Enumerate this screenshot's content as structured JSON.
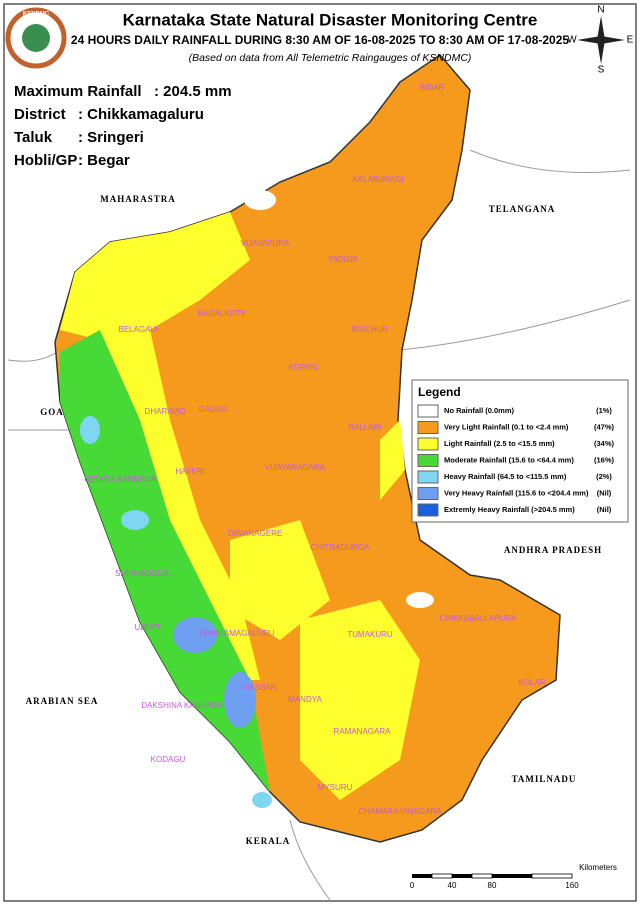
{
  "header": {
    "title": "Karnataka State Natural Disaster Monitoring Centre",
    "subtitle": "24 HOURS DAILY RAINFALL DURING 8:30 AM OF 16-08-2025 TO 8:30 AM OF 17-08-2025",
    "note": "(Based on data from All Telemetric Raingauges of KSNDMC)"
  },
  "logo": {
    "text": "KSNDMC"
  },
  "summary": [
    {
      "label": "Maximum Rainfall",
      "value": ": 204.5 mm"
    },
    {
      "label": "District",
      "value": ": Chikkamagaluru"
    },
    {
      "label": "Taluk",
      "value": ": Sringeri"
    },
    {
      "label": "Hobli/GP",
      "value": ": Begar"
    }
  ],
  "compass": [
    "N",
    "E",
    "S",
    "W"
  ],
  "map": {
    "neighbors": [
      "MAHARASTRA",
      "TELANGANA",
      "GOA",
      "ANDHRA PRADESH",
      "ARABIAN SEA",
      "TAMILNADU",
      "KERALA"
    ],
    "districts": [
      "BIDAR",
      "KALABURAGI",
      "VIJAYAPURA",
      "YADGIR",
      "BELAGAVI",
      "BAGALKOTE",
      "RAICHUR",
      "KOPPAL",
      "GADAG",
      "DHARWAD",
      "BALLARI",
      "HAVERI",
      "UTTARA KANNADA",
      "DAVANAGERE",
      "VIJAYANAGARA",
      "CHITRADURGA",
      "SHIVAMOGGA",
      "CHIKKAMAGALURU",
      "TUMAKURU",
      "CHIKKABALLAPURA",
      "UDUPI",
      "DAKSHINA KANNADA",
      "HASSAN",
      "KOLAR",
      "KODAGU",
      "MANDYA",
      "RAMANAGARA",
      "MYSURU",
      "CHAMARAJANAGARA"
    ]
  },
  "legend": {
    "title": "Legend",
    "items": [
      {
        "label": "No Rainfall (0.0mm)",
        "share": "(1%)",
        "color": "#ffffff"
      },
      {
        "label": "Very Light Rainfall (0.1 to <2.4 mm)",
        "share": "(47%)",
        "color": "#f59a1c"
      },
      {
        "label": "Light Rainfall (2.5 to <15.5 mm)",
        "share": "(34%)",
        "color": "#ffff2e"
      },
      {
        "label": "Moderate Rainfall (15.6 to <64.4 mm)",
        "share": "(16%)",
        "color": "#47d936"
      },
      {
        "label": "Heavy Rainfall (64.5 to <115.5 mm)",
        "share": "(2%)",
        "color": "#7fd6f2"
      },
      {
        "label": "Very Heavy Rainfall (115.6 to <204.4 mm)",
        "share": "(Nil)",
        "color": "#6f9ff0"
      },
      {
        "label": "Extremly Heavy Rainfall (>204.5 mm)",
        "share": "(Nil)",
        "color": "#1c5fdc"
      }
    ]
  },
  "scale": {
    "unit": "Kilometers",
    "ticks": [
      0,
      40,
      80,
      160
    ]
  }
}
